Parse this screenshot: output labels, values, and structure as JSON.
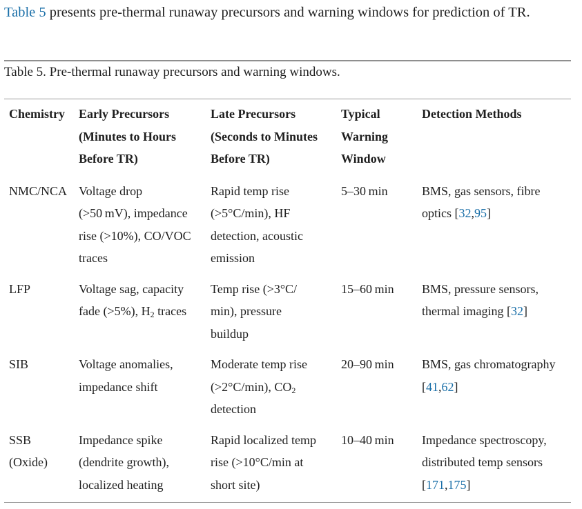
{
  "intro": {
    "link": "Table 5",
    "text": " presents pre-thermal runaway precursors and warning windows for prediction of TR."
  },
  "caption": "Table 5. Pre-thermal runaway precursors and warning windows.",
  "colors": {
    "text": "#1f1f1f",
    "link": "#1a6fa8",
    "rule": "#9a9a9a"
  },
  "table": {
    "headers": [
      [
        [
          {
            "t": "Chemistry"
          }
        ]
      ],
      [
        [
          {
            "t": "Early Precursors"
          }
        ],
        [
          {
            "t": "(Minutes to Hours"
          }
        ],
        [
          {
            "t": "Before TR)"
          }
        ]
      ],
      [
        [
          {
            "t": "Late Precursors"
          }
        ],
        [
          {
            "t": "(Seconds to Minutes"
          }
        ],
        [
          {
            "t": "Before TR)"
          }
        ]
      ],
      [
        [
          {
            "t": "Typical"
          }
        ],
        [
          {
            "t": "Warning"
          }
        ],
        [
          {
            "t": "Window"
          }
        ]
      ],
      [
        [
          {
            "t": "Detection Methods"
          }
        ]
      ]
    ],
    "rows": [
      [
        [
          [
            {
              "t": "NMC/NCA"
            }
          ]
        ],
        [
          [
            {
              "t": "Voltage drop"
            }
          ],
          [
            {
              "t": "(>50 mV), impedance"
            }
          ],
          [
            {
              "t": "rise (>10%), CO/VOC"
            }
          ],
          [
            {
              "t": "traces"
            }
          ]
        ],
        [
          [
            {
              "t": "Rapid temp rise"
            }
          ],
          [
            {
              "t": "(>5°C/min), HF"
            }
          ],
          [
            {
              "t": "detection, acoustic"
            }
          ],
          [
            {
              "t": "emission"
            }
          ]
        ],
        [
          [
            {
              "t": "5–30 min"
            }
          ]
        ],
        [
          [
            {
              "t": "BMS, gas sensors, fibre"
            }
          ],
          [
            {
              "t": "optics ["
            },
            {
              "t": "32",
              "link": true
            },
            {
              "t": ","
            },
            {
              "t": "95",
              "link": true
            },
            {
              "t": "]"
            }
          ]
        ]
      ],
      [
        [
          [
            {
              "t": "LFP"
            }
          ]
        ],
        [
          [
            {
              "t": "Voltage sag, capacity"
            }
          ],
          [
            {
              "t": "fade (>5%), H"
            },
            {
              "t": "2",
              "sub": true
            },
            {
              "t": " traces"
            }
          ]
        ],
        [
          [
            {
              "t": "Temp rise (>3°C/"
            }
          ],
          [
            {
              "t": "min), pressure"
            }
          ],
          [
            {
              "t": "buildup"
            }
          ]
        ],
        [
          [
            {
              "t": "15–60 min"
            }
          ]
        ],
        [
          [
            {
              "t": "BMS, pressure sensors,"
            }
          ],
          [
            {
              "t": "thermal imaging ["
            },
            {
              "t": "32",
              "link": true
            },
            {
              "t": "]"
            }
          ]
        ]
      ],
      [
        [
          [
            {
              "t": "SIB"
            }
          ]
        ],
        [
          [
            {
              "t": "Voltage anomalies,"
            }
          ],
          [
            {
              "t": "impedance shift"
            }
          ]
        ],
        [
          [
            {
              "t": "Moderate temp rise"
            }
          ],
          [
            {
              "t": "(>2°C/min), CO"
            },
            {
              "t": "2",
              "sub": true
            }
          ],
          [
            {
              "t": "detection"
            }
          ]
        ],
        [
          [
            {
              "t": "20–90 min"
            }
          ]
        ],
        [
          [
            {
              "t": "BMS, gas chromatography"
            }
          ],
          [
            {
              "t": "["
            },
            {
              "t": "41",
              "link": true
            },
            {
              "t": ","
            },
            {
              "t": "62",
              "link": true
            },
            {
              "t": "]"
            }
          ]
        ]
      ],
      [
        [
          [
            {
              "t": "SSB"
            }
          ],
          [
            {
              "t": "(Oxide)"
            }
          ]
        ],
        [
          [
            {
              "t": "Impedance spike"
            }
          ],
          [
            {
              "t": "(dendrite growth),"
            }
          ],
          [
            {
              "t": "localized heating"
            }
          ]
        ],
        [
          [
            {
              "t": "Rapid localized temp"
            }
          ],
          [
            {
              "t": "rise (>10°C/min at"
            }
          ],
          [
            {
              "t": "short site)"
            }
          ]
        ],
        [
          [
            {
              "t": "10–40 min"
            }
          ]
        ],
        [
          [
            {
              "t": "Impedance spectroscopy,"
            }
          ],
          [
            {
              "t": "distributed temp sensors"
            }
          ],
          [
            {
              "t": "["
            },
            {
              "t": "171",
              "link": true
            },
            {
              "t": ","
            },
            {
              "t": "175",
              "link": true
            },
            {
              "t": "]"
            }
          ]
        ]
      ]
    ]
  }
}
